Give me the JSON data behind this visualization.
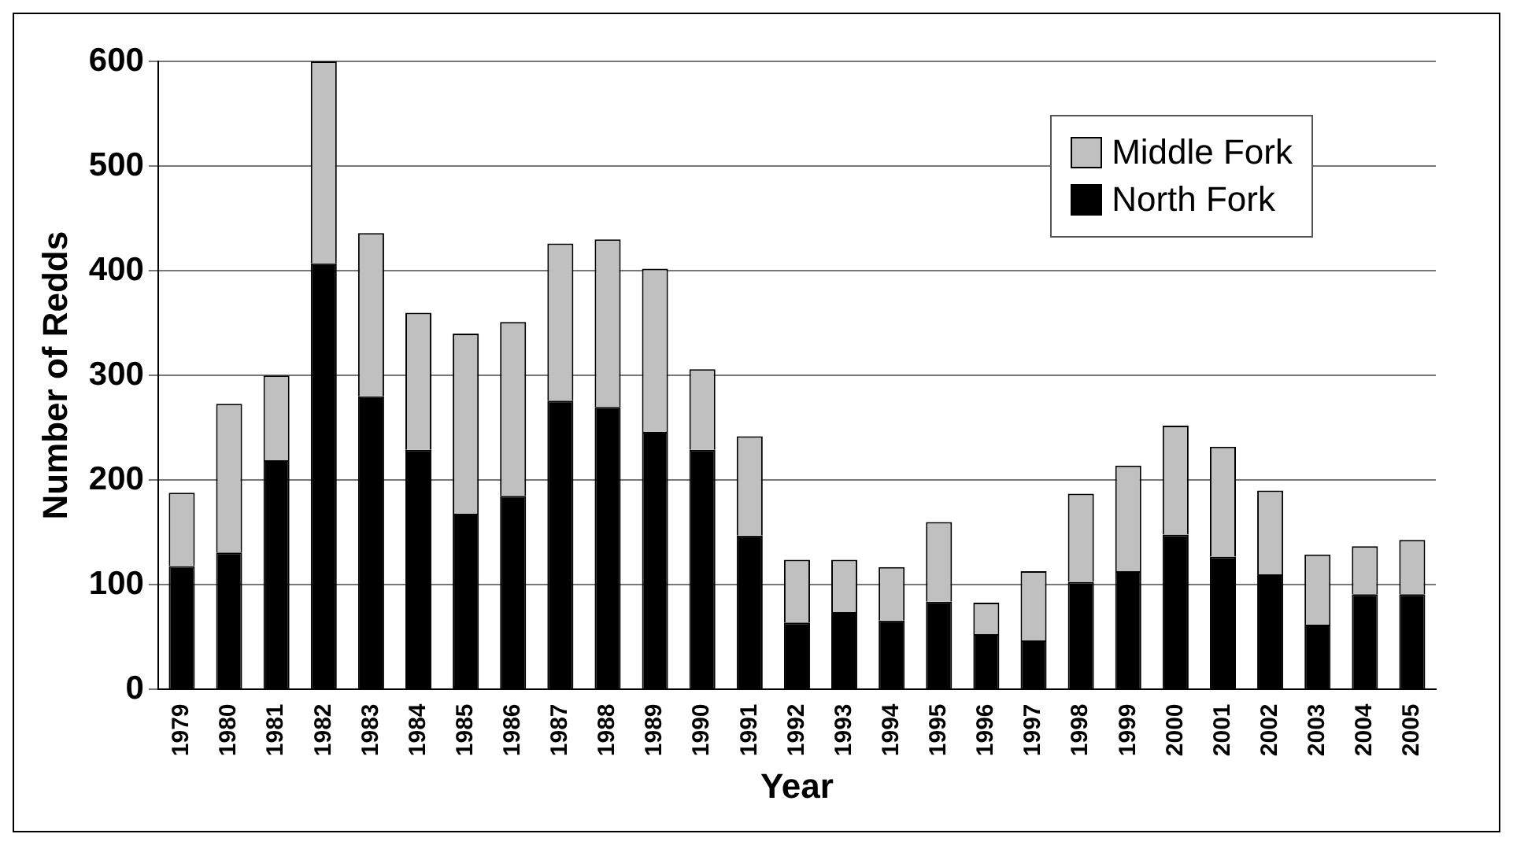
{
  "chart_data": {
    "type": "bar",
    "stacked": true,
    "xlabel": "Year",
    "ylabel": "Number of Redds",
    "categories": [
      "1979",
      "1980",
      "1981",
      "1982",
      "1983",
      "1984",
      "1985",
      "1986",
      "1987",
      "1988",
      "1989",
      "1990",
      "1991",
      "1992",
      "1993",
      "1994",
      "1995",
      "1996",
      "1997",
      "1998",
      "1999",
      "2000",
      "2001",
      "2002",
      "2003",
      "2004",
      "2005"
    ],
    "series": [
      {
        "name": "North Fork",
        "color": "#000000",
        "values": [
          118,
          131,
          219,
          407,
          280,
          229,
          168,
          185,
          276,
          270,
          246,
          229,
          147,
          64,
          74,
          66,
          84,
          53,
          47,
          103,
          113,
          148,
          127,
          110,
          62,
          91,
          91
        ]
      },
      {
        "name": "Middle Fork",
        "color": "#c0c0c0",
        "values": [
          70,
          142,
          81,
          193,
          156,
          131,
          172,
          166,
          150,
          160,
          156,
          77,
          95,
          60,
          50,
          51,
          76,
          30,
          66,
          84,
          101,
          104,
          105,
          80,
          67,
          46,
          52
        ]
      }
    ],
    "ylim": [
      0,
      600
    ],
    "yticks": [
      0,
      100,
      200,
      300,
      400,
      500,
      600
    ],
    "grid": "y",
    "legend": "top right"
  }
}
